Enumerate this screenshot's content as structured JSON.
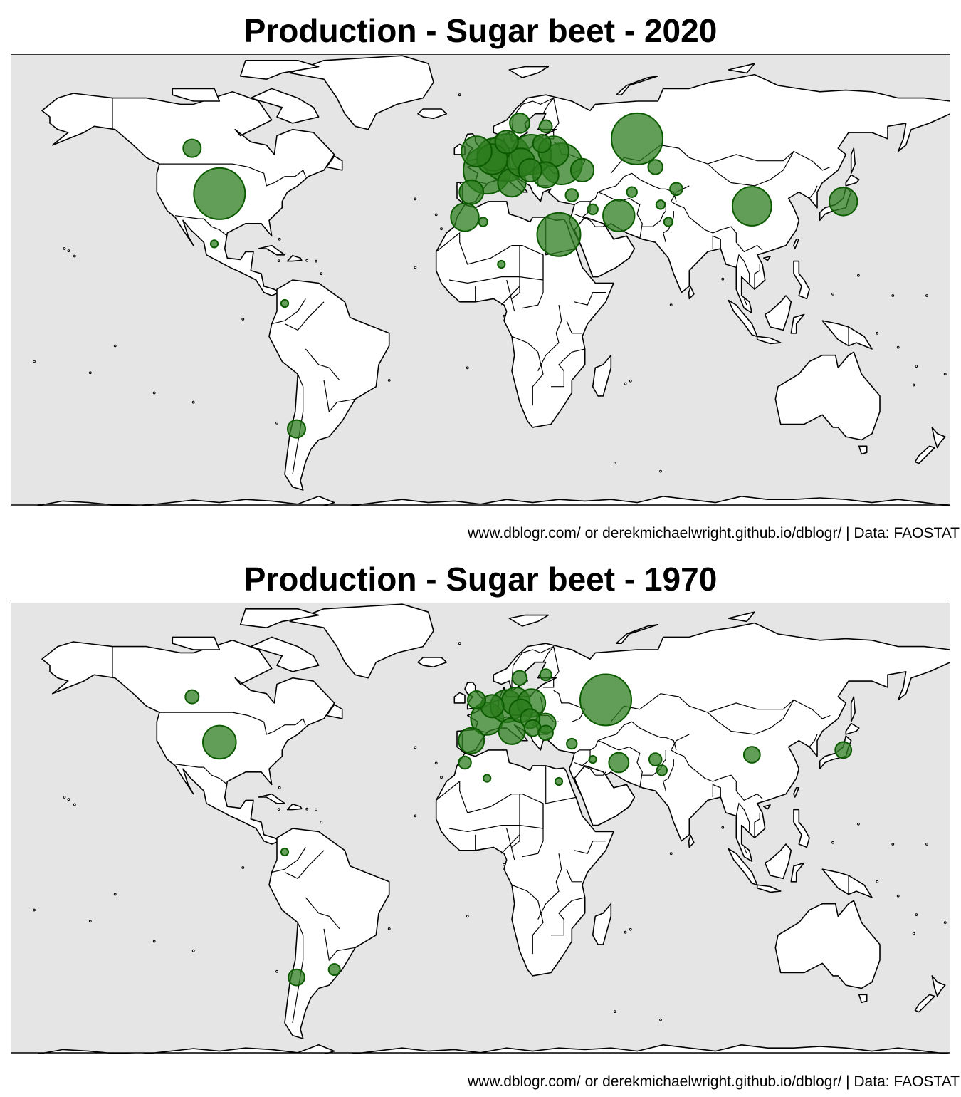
{
  "caption": "www.dblogr.com/ or derekmichaelwright.github.io/dblogr/ | Data: FAOSTAT",
  "colors": {
    "ocean": "#e5e5e5",
    "land": "#ffffff",
    "bubble_fill": "#2e7d1f",
    "bubble_stroke": "#0b5a00"
  },
  "maps": [
    {
      "title": "Production - Sugar beet - 2020",
      "chart_data": {
        "type": "bubble-map",
        "measure": "production",
        "bubbles": [
          {
            "lon": -100.0,
            "lat": 39.5,
            "size": 1.0
          },
          {
            "lon": -110.5,
            "lat": 54.0,
            "size": 0.12
          },
          {
            "lon": -102.0,
            "lat": 23.5,
            "size": 0.02
          },
          {
            "lon": -70.5,
            "lat": -35.5,
            "size": 0.12
          },
          {
            "lon": -75.0,
            "lat": 4.5,
            "size": 0.02
          },
          {
            "lon": -3.5,
            "lat": 40.0,
            "size": 0.22
          },
          {
            "lon": -6.0,
            "lat": 32.0,
            "size": 0.3
          },
          {
            "lon": 2.5,
            "lat": 47.0,
            "size": 0.85
          },
          {
            "lon": 10.0,
            "lat": 51.0,
            "size": 0.85
          },
          {
            "lon": 19.5,
            "lat": 52.0,
            "size": 0.6
          },
          {
            "lon": 5.0,
            "lat": 52.0,
            "size": 0.4
          },
          {
            "lon": 4.5,
            "lat": 50.5,
            "size": 0.35
          },
          {
            "lon": -1.5,
            "lat": 53.0,
            "size": 0.35
          },
          {
            "lon": 12.0,
            "lat": 43.0,
            "size": 0.3
          },
          {
            "lon": 15.5,
            "lat": 49.5,
            "size": 0.3
          },
          {
            "lon": 19.0,
            "lat": 47.0,
            "size": 0.2
          },
          {
            "lon": 25.0,
            "lat": 45.5,
            "size": 0.25
          },
          {
            "lon": 31.0,
            "lat": 49.0,
            "size": 0.65
          },
          {
            "lon": 28.0,
            "lat": 53.0,
            "size": 0.35
          },
          {
            "lon": 15.0,
            "lat": 62.0,
            "size": 0.15
          },
          {
            "lon": 10.0,
            "lat": 56.0,
            "size": 0.2
          },
          {
            "lon": 25.0,
            "lat": 61.0,
            "size": 0.06
          },
          {
            "lon": 23.5,
            "lat": 55.5,
            "size": 0.12
          },
          {
            "lon": 39.0,
            "lat": 47.0,
            "size": 0.2
          },
          {
            "lon": 60.0,
            "lat": 57.0,
            "size": 1.0
          },
          {
            "lon": 30.0,
            "lat": 26.5,
            "size": 0.72
          },
          {
            "lon": 53.0,
            "lat": 32.5,
            "size": 0.38
          },
          {
            "lon": 35.0,
            "lat": 39.0,
            "size": 0.06
          },
          {
            "lon": 67.0,
            "lat": 48.0,
            "size": 0.08
          },
          {
            "lon": 75.0,
            "lat": 41.0,
            "size": 0.06
          },
          {
            "lon": 104.0,
            "lat": 35.5,
            "size": 0.58
          },
          {
            "lon": 139.0,
            "lat": 37.0,
            "size": 0.3
          },
          {
            "lon": 43.0,
            "lat": 34.5,
            "size": 0.04
          },
          {
            "lon": 58.0,
            "lat": 40.0,
            "size": 0.04
          },
          {
            "lon": 69.0,
            "lat": 36.0,
            "size": 0.03
          },
          {
            "lon": 72.0,
            "lat": 30.5,
            "size": 0.03
          },
          {
            "lon": 1.0,
            "lat": 30.5,
            "size": 0.03
          },
          {
            "lon": 8.0,
            "lat": 17.0,
            "size": 0.02
          }
        ]
      }
    },
    {
      "title": "Production - Sugar beet - 1970",
      "chart_data": {
        "type": "bubble-map",
        "measure": "production",
        "bubbles": [
          {
            "lon": -100.0,
            "lat": 39.5,
            "size": 0.42
          },
          {
            "lon": -110.5,
            "lat": 54.0,
            "size": 0.07
          },
          {
            "lon": -70.5,
            "lat": -35.5,
            "size": 0.1
          },
          {
            "lon": -56.0,
            "lat": -33.0,
            "size": 0.05
          },
          {
            "lon": -75.0,
            "lat": 4.5,
            "size": 0.02
          },
          {
            "lon": -3.5,
            "lat": 40.0,
            "size": 0.25
          },
          {
            "lon": -6.0,
            "lat": 33.0,
            "size": 0.06
          },
          {
            "lon": 2.5,
            "lat": 47.0,
            "size": 0.4
          },
          {
            "lon": 10.0,
            "lat": 51.0,
            "size": 0.4
          },
          {
            "lon": 13.5,
            "lat": 52.5,
            "size": 0.3
          },
          {
            "lon": 19.5,
            "lat": 52.0,
            "size": 0.3
          },
          {
            "lon": 4.5,
            "lat": 51.0,
            "size": 0.2
          },
          {
            "lon": -1.5,
            "lat": 53.0,
            "size": 0.12
          },
          {
            "lon": 12.0,
            "lat": 43.0,
            "size": 0.26
          },
          {
            "lon": 15.5,
            "lat": 49.5,
            "size": 0.2
          },
          {
            "lon": 19.0,
            "lat": 47.0,
            "size": 0.14
          },
          {
            "lon": 25.0,
            "lat": 45.5,
            "size": 0.15
          },
          {
            "lon": 20.0,
            "lat": 44.0,
            "size": 0.1
          },
          {
            "lon": 25.0,
            "lat": 42.5,
            "size": 0.08
          },
          {
            "lon": 15.0,
            "lat": 60.0,
            "size": 0.08
          },
          {
            "lon": 25.0,
            "lat": 61.0,
            "size": 0.05
          },
          {
            "lon": 48.0,
            "lat": 53.0,
            "size": 1.0
          },
          {
            "lon": 53.0,
            "lat": 33.0,
            "size": 0.15
          },
          {
            "lon": 35.0,
            "lat": 39.0,
            "size": 0.04
          },
          {
            "lon": 104.0,
            "lat": 35.5,
            "size": 0.1
          },
          {
            "lon": 139.0,
            "lat": 37.0,
            "size": 0.1
          },
          {
            "lon": 67.0,
            "lat": 34.0,
            "size": 0.06
          },
          {
            "lon": 69.5,
            "lat": 30.5,
            "size": 0.04
          },
          {
            "lon": 30.0,
            "lat": 27.0,
            "size": 0.02
          },
          {
            "lon": 2.5,
            "lat": 28.0,
            "size": 0.02
          },
          {
            "lon": 43.0,
            "lat": 34.0,
            "size": 0.02
          }
        ]
      }
    }
  ]
}
